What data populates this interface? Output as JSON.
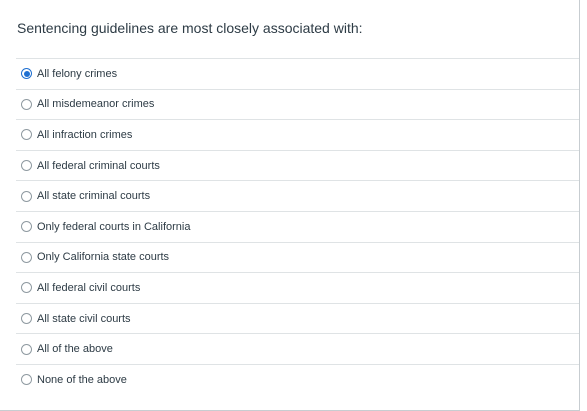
{
  "question": {
    "text": "Sentencing guidelines are most closely associated with:"
  },
  "answers": [
    {
      "label": "All felony crimes",
      "selected": true
    },
    {
      "label": "All misdemeanor crimes",
      "selected": false
    },
    {
      "label": "All infraction crimes",
      "selected": false
    },
    {
      "label": "All federal criminal courts",
      "selected": false
    },
    {
      "label": "All state criminal courts",
      "selected": false
    },
    {
      "label": "Only federal courts in California",
      "selected": false
    },
    {
      "label": "Only California state courts",
      "selected": false
    },
    {
      "label": "All federal civil courts",
      "selected": false
    },
    {
      "label": "All state civil courts",
      "selected": false
    },
    {
      "label": "All of the above",
      "selected": false
    },
    {
      "label": "None of the above",
      "selected": false
    }
  ],
  "colors": {
    "accent": "#1e6fd1",
    "text": "#2d3b45",
    "divider": "#dfe3e5"
  }
}
